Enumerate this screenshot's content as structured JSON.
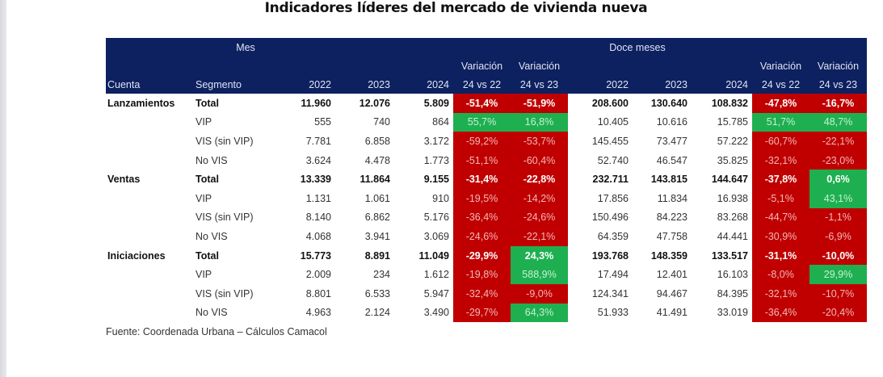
{
  "title": "Indicadores líderes del mercado de vivienda nueva",
  "header": {
    "group_mes": "Mes",
    "group_doce": "Doce meses",
    "variacion": "Variación",
    "col_cuenta": "Cuenta",
    "col_segmento": "Segmento",
    "years": [
      "2022",
      "2023",
      "2024"
    ],
    "var_24_22": "24 vs 22",
    "var_24_23": "24 vs 23"
  },
  "colors": {
    "header_bg": "#0d2160",
    "negative": "#c00000",
    "positive": "#1eb050"
  },
  "groups": [
    {
      "cuenta": "Lanzamientos",
      "rows": [
        {
          "segmento": "Total",
          "mes": [
            "11.960",
            "12.076",
            "5.809"
          ],
          "mes_var": [
            "-51,4%",
            "-51,9%"
          ],
          "doce": [
            "208.600",
            "130.640",
            "108.832"
          ],
          "doce_var": [
            "-47,8%",
            "-16,7%"
          ]
        },
        {
          "segmento": "VIP",
          "mes": [
            "555",
            "740",
            "864"
          ],
          "mes_var": [
            "55,7%",
            "16,8%"
          ],
          "doce": [
            "10.405",
            "10.616",
            "15.785"
          ],
          "doce_var": [
            "51,7%",
            "48,7%"
          ]
        },
        {
          "segmento": "VIS (sin VIP)",
          "mes": [
            "7.781",
            "6.858",
            "3.172"
          ],
          "mes_var": [
            "-59,2%",
            "-53,7%"
          ],
          "doce": [
            "145.455",
            "73.477",
            "57.222"
          ],
          "doce_var": [
            "-60,7%",
            "-22,1%"
          ]
        },
        {
          "segmento": "No VIS",
          "mes": [
            "3.624",
            "4.478",
            "1.773"
          ],
          "mes_var": [
            "-51,1%",
            "-60,4%"
          ],
          "doce": [
            "52.740",
            "46.547",
            "35.825"
          ],
          "doce_var": [
            "-32,1%",
            "-23,0%"
          ]
        }
      ]
    },
    {
      "cuenta": "Ventas",
      "rows": [
        {
          "segmento": "Total",
          "mes": [
            "13.339",
            "11.864",
            "9.155"
          ],
          "mes_var": [
            "-31,4%",
            "-22,8%"
          ],
          "doce": [
            "232.711",
            "143.815",
            "144.647"
          ],
          "doce_var": [
            "-37,8%",
            "0,6%"
          ]
        },
        {
          "segmento": "VIP",
          "mes": [
            "1.131",
            "1.061",
            "910"
          ],
          "mes_var": [
            "-19,5%",
            "-14,2%"
          ],
          "doce": [
            "17.856",
            "11.834",
            "16.938"
          ],
          "doce_var": [
            "-5,1%",
            "43,1%"
          ]
        },
        {
          "segmento": "VIS (sin VIP)",
          "mes": [
            "8.140",
            "6.862",
            "5.176"
          ],
          "mes_var": [
            "-36,4%",
            "-24,6%"
          ],
          "doce": [
            "150.496",
            "84.223",
            "83.268"
          ],
          "doce_var": [
            "-44,7%",
            "-1,1%"
          ]
        },
        {
          "segmento": "No VIS",
          "mes": [
            "4.068",
            "3.941",
            "3.069"
          ],
          "mes_var": [
            "-24,6%",
            "-22,1%"
          ],
          "doce": [
            "64.359",
            "47.758",
            "44.441"
          ],
          "doce_var": [
            "-30,9%",
            "-6,9%"
          ]
        }
      ]
    },
    {
      "cuenta": "Iniciaciones",
      "rows": [
        {
          "segmento": "Total",
          "mes": [
            "15.773",
            "8.891",
            "11.049"
          ],
          "mes_var": [
            "-29,9%",
            "24,3%"
          ],
          "doce": [
            "193.768",
            "148.359",
            "133.517"
          ],
          "doce_var": [
            "-31,1%",
            "-10,0%"
          ]
        },
        {
          "segmento": "VIP",
          "mes": [
            "2.009",
            "234",
            "1.612"
          ],
          "mes_var": [
            "-19,8%",
            "588,9%"
          ],
          "doce": [
            "17.494",
            "12.401",
            "16.103"
          ],
          "doce_var": [
            "-8,0%",
            "29,9%"
          ]
        },
        {
          "segmento": "VIS (sin VIP)",
          "mes": [
            "8.801",
            "6.533",
            "5.947"
          ],
          "mes_var": [
            "-32,4%",
            "-9,0%"
          ],
          "doce": [
            "124.341",
            "94.467",
            "84.395"
          ],
          "doce_var": [
            "-32,1%",
            "-10,7%"
          ]
        },
        {
          "segmento": "No VIS",
          "mes": [
            "4.963",
            "2.124",
            "3.490"
          ],
          "mes_var": [
            "-29,7%",
            "64,3%"
          ],
          "doce": [
            "51.933",
            "41.491",
            "33.019"
          ],
          "doce_var": [
            "-36,4%",
            "-20,4%"
          ]
        }
      ]
    }
  ],
  "source": "Fuente: Coordenada Urbana – Cálculos Camacol"
}
